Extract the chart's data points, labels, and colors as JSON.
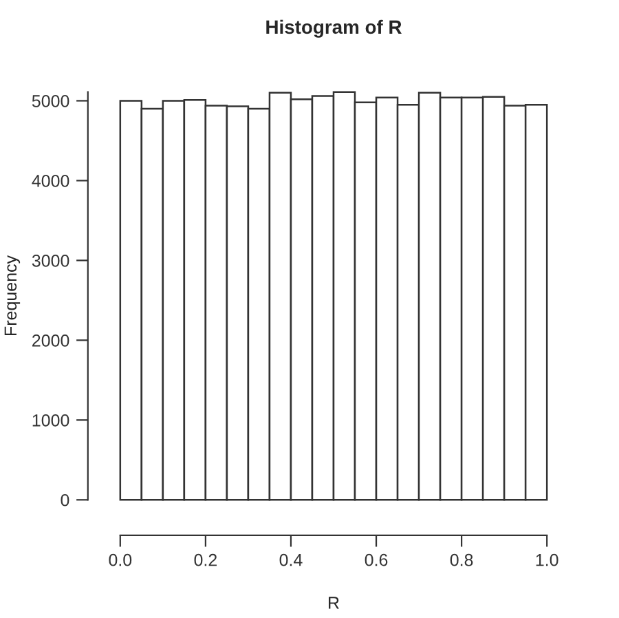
{
  "chart_data": {
    "type": "histogram",
    "title": "Histogram of R",
    "xlabel": "R",
    "ylabel": "Frequency",
    "bins": [
      0,
      0.05,
      0.1,
      0.15,
      0.2,
      0.25,
      0.3,
      0.35,
      0.4,
      0.45,
      0.5,
      0.55,
      0.6,
      0.65,
      0.7,
      0.75,
      0.8,
      0.85,
      0.9,
      0.95,
      1.0
    ],
    "values": [
      5000,
      4900,
      5000,
      5010,
      4940,
      4930,
      4900,
      5100,
      5020,
      5060,
      5110,
      4980,
      5040,
      4950,
      5100,
      5040,
      5040,
      5050,
      4940,
      4950
    ],
    "color": "#ffffff",
    "xticks": [
      {
        "value": 0,
        "label": "0.0"
      },
      {
        "value": 0.2,
        "label": "0.2"
      },
      {
        "value": 0.4,
        "label": "0.4"
      },
      {
        "value": 0.6,
        "label": "0.6"
      },
      {
        "value": 0.8,
        "label": "0.8"
      },
      {
        "value": 1.0,
        "label": "1.0"
      }
    ],
    "xlim": [
      0,
      1
    ],
    "ylim": [
      0,
      5110
    ],
    "yticks": [
      0,
      1000,
      2000,
      3000,
      4000,
      5000
    ],
    "grid": false,
    "legend": false
  }
}
